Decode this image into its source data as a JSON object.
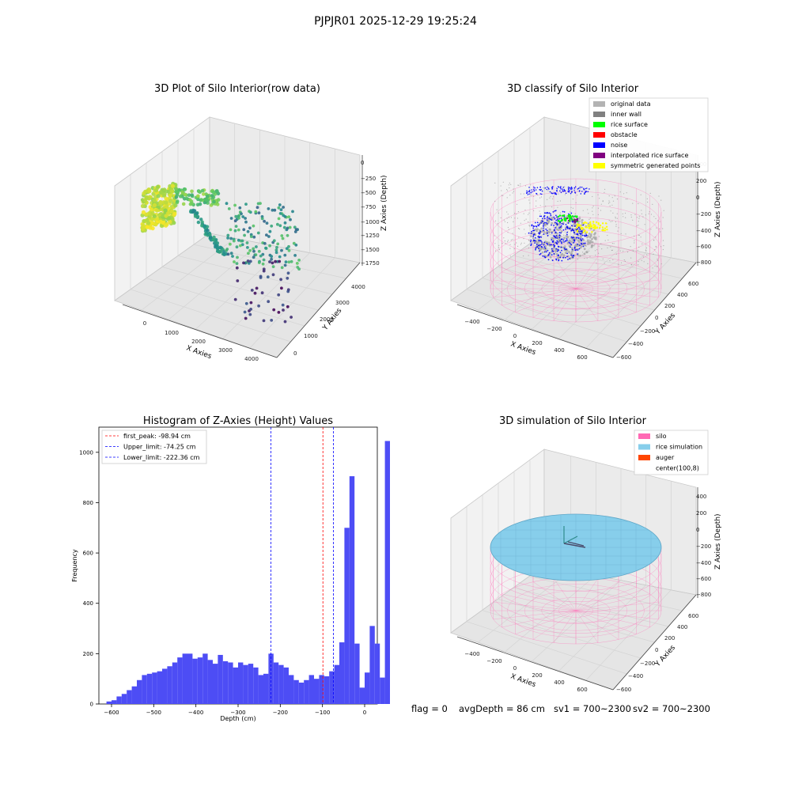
{
  "suptitle": "PJPJR01 2025-12-29 19:25:24",
  "footer": {
    "flag": "flag = 0",
    "avg_depth": "avgDepth = 86 cm",
    "sv1": "sv1 = 700~2300",
    "sv2": "sv2 = 700~2300"
  },
  "chart_data": [
    {
      "type": "scatter",
      "projection": "3d",
      "title": "3D Plot of Silo Interior(row data)",
      "xlabel": "X Axies",
      "ylabel": "Y Axies",
      "zlabel": "Z Axies (Depth)",
      "x_ticks": [
        "0",
        "1000",
        "2000",
        "3000",
        "4000"
      ],
      "y_ticks": [
        "0",
        "1000",
        "2000",
        "3000",
        "4000"
      ],
      "z_ticks": [
        "0",
        "−250",
        "−500",
        "−750",
        "−1000",
        "−1250",
        "−1500",
        "−1750"
      ],
      "colormap": "viridis",
      "colors": {
        "low": "#440154",
        "mid": "#21918c",
        "high": "#fde725"
      }
    },
    {
      "type": "scatter",
      "projection": "3d",
      "title": "3D classify of Silo Interior",
      "xlabel": "X Axies",
      "ylabel": "Y Axies",
      "zlabel": "Z Axies (Depth)",
      "x_ticks": [
        "−400",
        "−200",
        "0",
        "200",
        "400",
        "600"
      ],
      "y_ticks": [
        "−600",
        "−400",
        "−200",
        "0",
        "200",
        "400",
        "600"
      ],
      "z_ticks": [
        "400",
        "200",
        "0",
        "−200",
        "−400",
        "−600",
        "−800"
      ],
      "legend_position": "top-right",
      "legend": [
        {
          "label": "original data",
          "color": "#b3b3b3"
        },
        {
          "label": "inner wall",
          "color": "#808080"
        },
        {
          "label": "rice surface",
          "color": "#00ff00"
        },
        {
          "label": "obstacle",
          "color": "#ff0000"
        },
        {
          "label": "noise",
          "color": "#0000ff"
        },
        {
          "label": "interpolated rice surface",
          "color": "#800080"
        },
        {
          "label": "symmetric generated points",
          "color": "#ffff00"
        }
      ]
    },
    {
      "type": "bar",
      "title": "Histogram of Z-Axies (Height) Values",
      "xlabel": "Depth (cm)",
      "ylabel": "Frequency",
      "xlim": [
        -630,
        30
      ],
      "ylim": [
        0,
        1100
      ],
      "x_ticks": [
        -600,
        -500,
        -400,
        -300,
        -200,
        -100,
        0
      ],
      "x_tick_labels": [
        "−600",
        "−500",
        "−400",
        "−300",
        "−200",
        "−100",
        "0"
      ],
      "y_ticks": [
        0,
        200,
        400,
        600,
        800,
        1000
      ],
      "bin_start": -612,
      "bin_width": 12,
      "bar_color": "#4d4df5",
      "values": [
        10,
        15,
        30,
        40,
        55,
        70,
        95,
        115,
        120,
        125,
        130,
        140,
        150,
        165,
        185,
        200,
        200,
        180,
        185,
        200,
        175,
        160,
        195,
        170,
        165,
        145,
        165,
        155,
        160,
        145,
        115,
        120,
        200,
        165,
        155,
        145,
        115,
        95,
        85,
        95,
        115,
        100,
        115,
        110,
        130,
        155,
        245,
        700,
        905,
        240,
        65,
        125,
        310,
        240,
        105,
        1045
      ],
      "legend_position": "top-left",
      "vlines": [
        {
          "label": "first_peak: -98.94 cm",
          "x": -98.94,
          "color": "#ff0000"
        },
        {
          "label": "Upper_limit: -74.25 cm",
          "x": -74.25,
          "color": "#0000ff"
        },
        {
          "label": "Lower_limit: -222.36 cm",
          "x": -222.36,
          "color": "#0000ff"
        }
      ]
    },
    {
      "type": "surface",
      "projection": "3d",
      "title": "3D simulation of Silo Interior",
      "xlabel": "X Axies",
      "ylabel": "Y Axies",
      "zlabel": "Z Axies (Depth)",
      "x_ticks": [
        "−400",
        "−200",
        "0",
        "200",
        "400",
        "600"
      ],
      "y_ticks": [
        "−600",
        "−400",
        "−200",
        "0",
        "200",
        "400",
        "600"
      ],
      "z_ticks": [
        "400",
        "200",
        "0",
        "−200",
        "−400",
        "−600",
        "−800"
      ],
      "legend_position": "top-right",
      "legend": [
        {
          "label": "silo",
          "color": "#ff69b4"
        },
        {
          "label": "rice simulation",
          "color": "#87ceeb"
        },
        {
          "label": "auger",
          "color": "#ff4500"
        },
        {
          "label": "center(100,8)",
          "color": ""
        }
      ]
    }
  ]
}
